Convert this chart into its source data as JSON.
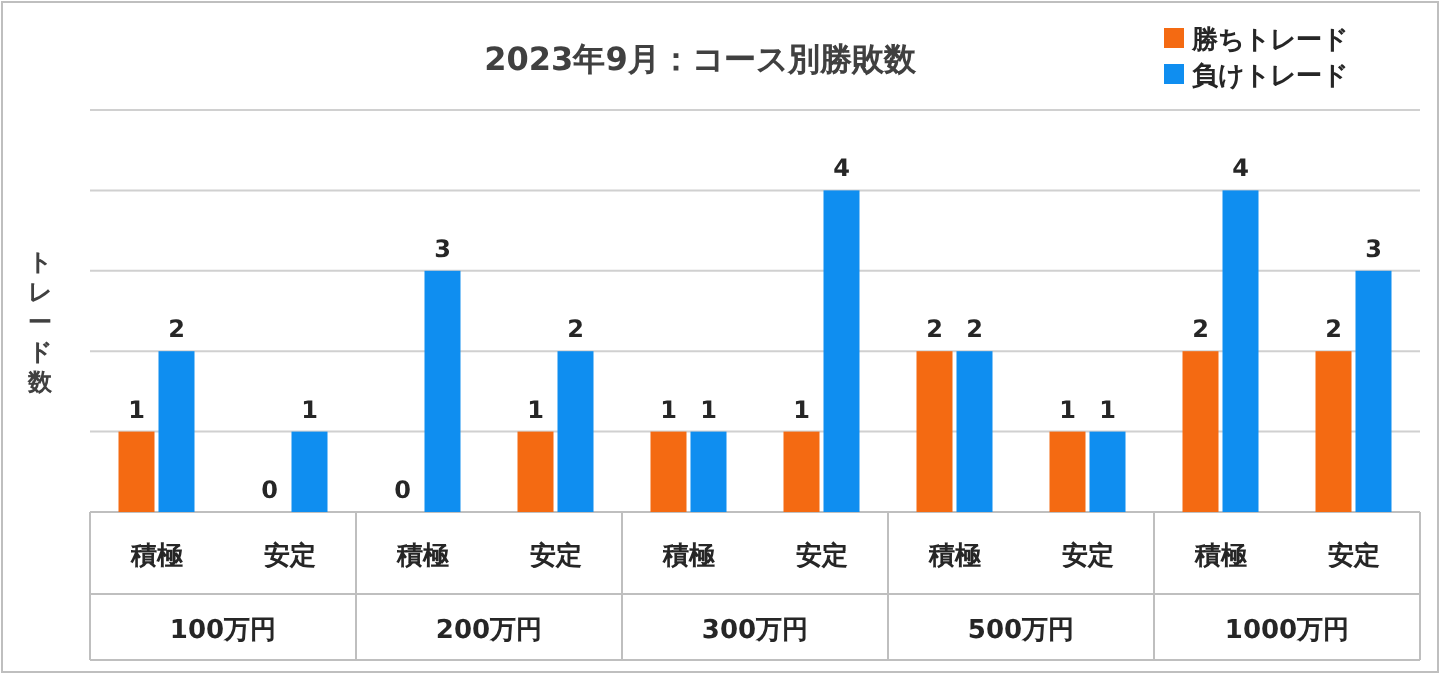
{
  "chart_data": {
    "type": "bar",
    "title": "2023年9月：コース別勝敗数",
    "ylabel": "トレード数",
    "categories": [
      "積極",
      "安定",
      "積極",
      "安定",
      "積極",
      "安定",
      "積極",
      "安定",
      "積極",
      "安定"
    ],
    "annotations": [
      "100万円",
      "200万円",
      "300万円",
      "500万円",
      "1000万円"
    ],
    "series": [
      {
        "name": "勝ちトレード",
        "color": "#f46a12",
        "values": [
          1,
          0,
          0,
          1,
          1,
          1,
          2,
          1,
          2,
          2
        ]
      },
      {
        "name": "負けトレード",
        "color": "#0f8ef0",
        "values": [
          2,
          1,
          3,
          2,
          1,
          4,
          2,
          1,
          4,
          3
        ]
      }
    ],
    "ylim": [
      0,
      5
    ],
    "yticks": [
      {
        "value": 0,
        "label": null
      },
      {
        "value": 1,
        "label": null
      },
      {
        "value": 2,
        "label": null
      },
      {
        "value": 3,
        "label": null
      },
      {
        "value": 4,
        "label": null
      },
      {
        "value": 5,
        "label": null
      }
    ],
    "tick_labels": "x",
    "grid": "y",
    "data_labels": true,
    "legend": "top right"
  }
}
